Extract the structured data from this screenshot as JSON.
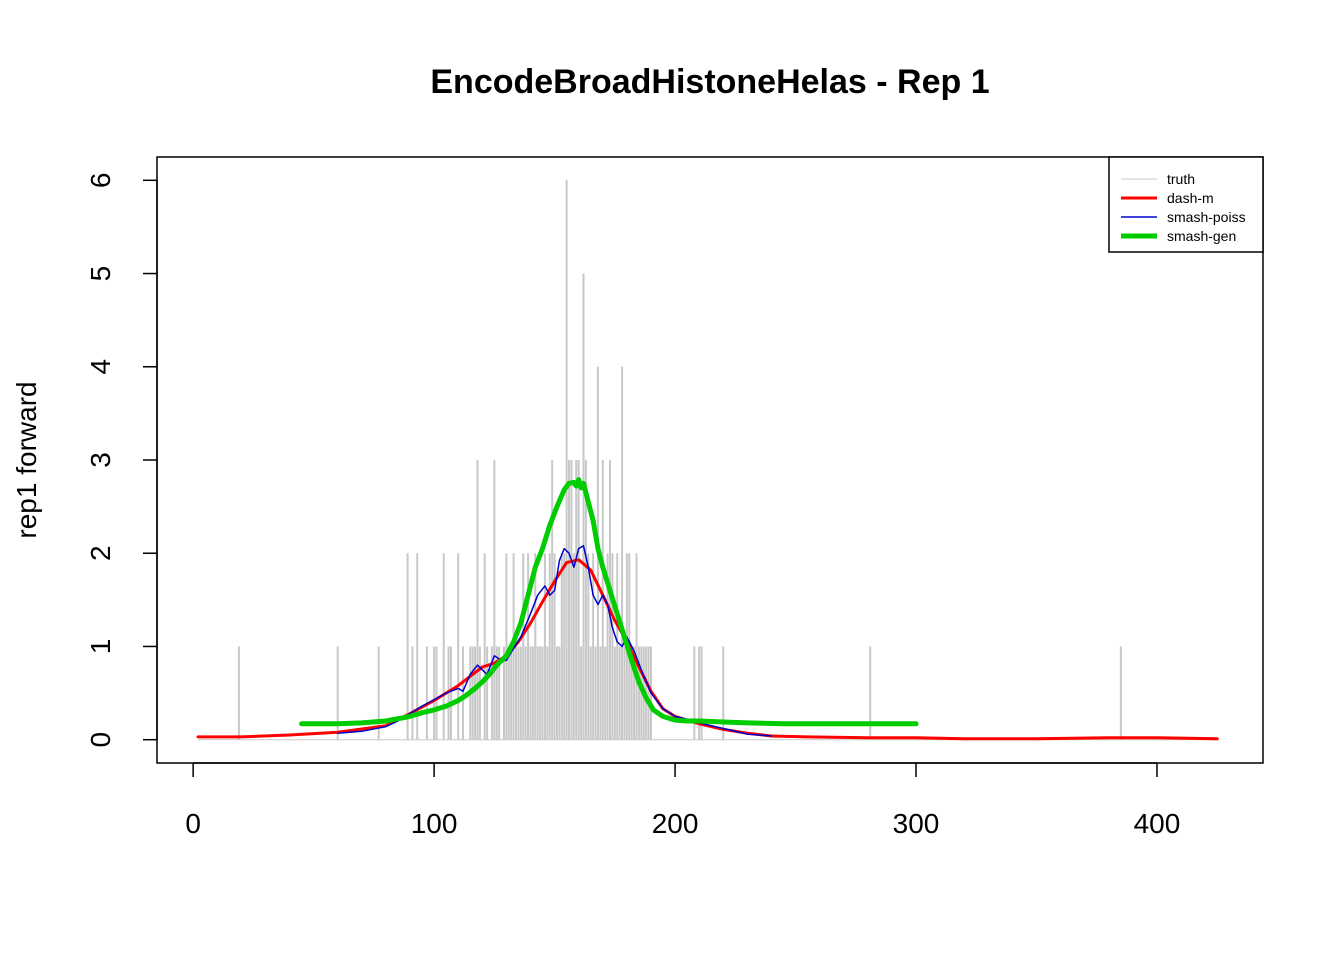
{
  "chart_data": {
    "type": "line",
    "title": "EncodeBroadHistoneHelas - Rep 1",
    "xlabel": "",
    "ylabel": "rep1 forward",
    "xlim": [
      -15,
      444
    ],
    "ylim": [
      -0.25,
      6.25
    ],
    "xticks": [
      0,
      100,
      200,
      300,
      400
    ],
    "yticks": [
      0,
      1,
      2,
      3,
      4,
      5,
      6
    ],
    "legend": {
      "position": "top-right",
      "entries": [
        {
          "name": "truth",
          "color": "#c8c8c8",
          "width": 1
        },
        {
          "name": "dash-m",
          "color": "#ff0000",
          "width": 3
        },
        {
          "name": "smash-poiss",
          "color": "#0000cd",
          "width": 1.5
        },
        {
          "name": "smash-gen",
          "color": "#00cd00",
          "width": 5
        }
      ]
    },
    "truth_bars": {
      "color": "#c8c8c8",
      "x": [
        19,
        60,
        77,
        89,
        91,
        93,
        97,
        100,
        101,
        104,
        106,
        107,
        110,
        112,
        115,
        116,
        117,
        118,
        119,
        121,
        122,
        124,
        125,
        126,
        127,
        129,
        130,
        131,
        132,
        133,
        134,
        135,
        136,
        137,
        138,
        139,
        140,
        141,
        142,
        143,
        144,
        145,
        146,
        147,
        148,
        149,
        150,
        151,
        152,
        153,
        154,
        155,
        156,
        157,
        158,
        159,
        160,
        161,
        162,
        163,
        164,
        165,
        166,
        167,
        168,
        169,
        170,
        171,
        172,
        173,
        174,
        175,
        176,
        177,
        178,
        179,
        180,
        181,
        182,
        183,
        184,
        185,
        186,
        187,
        188,
        189,
        190,
        208,
        210,
        211,
        220,
        281,
        385
      ],
      "y": [
        1,
        1,
        1,
        2,
        1,
        2,
        1,
        1,
        1,
        2,
        1,
        1,
        2,
        1,
        1,
        1,
        1,
        3,
        1,
        2,
        1,
        1,
        3,
        1,
        1,
        1,
        2,
        1,
        1,
        2,
        1,
        1,
        1,
        2,
        1,
        2,
        1,
        1,
        2,
        1,
        1,
        1,
        2,
        1,
        2,
        3,
        2,
        1,
        1,
        2,
        2,
        6,
        3,
        3,
        2,
        3,
        3,
        1,
        5,
        3,
        2,
        1,
        2,
        1,
        4,
        1,
        3,
        1,
        2,
        3,
        2,
        1,
        2,
        1,
        4,
        1,
        2,
        2,
        1,
        1,
        2,
        1,
        1,
        1,
        1,
        1,
        1,
        1,
        1,
        1,
        1,
        1,
        1
      ]
    },
    "series": [
      {
        "name": "dash-m",
        "color": "#ff0000",
        "width": 3,
        "x": [
          2,
          20,
          40,
          60,
          80,
          90,
          100,
          110,
          115,
          120,
          125,
          130,
          135,
          140,
          145,
          150,
          155,
          160,
          165,
          170,
          175,
          180,
          185,
          190,
          195,
          200,
          210,
          220,
          230,
          240,
          255,
          280,
          300,
          320,
          350,
          380,
          400,
          425
        ],
        "y": [
          0.03,
          0.03,
          0.05,
          0.08,
          0.15,
          0.28,
          0.42,
          0.58,
          0.68,
          0.78,
          0.82,
          0.9,
          1.05,
          1.25,
          1.48,
          1.7,
          1.9,
          1.93,
          1.82,
          1.55,
          1.28,
          1.05,
          0.78,
          0.52,
          0.33,
          0.25,
          0.17,
          0.11,
          0.07,
          0.04,
          0.03,
          0.02,
          0.02,
          0.01,
          0.01,
          0.02,
          0.02,
          0.01
        ]
      },
      {
        "name": "smash-poiss",
        "color": "#0000cd",
        "width": 1.5,
        "x": [
          60,
          70,
          80,
          85,
          90,
          95,
          100,
          105,
          110,
          112,
          115,
          118,
          120,
          122,
          125,
          128,
          130,
          133,
          136,
          140,
          143,
          146,
          148,
          150,
          152,
          154,
          156,
          158,
          160,
          162,
          164,
          166,
          168,
          170,
          172,
          174,
          176,
          178,
          180,
          183,
          186,
          190,
          195,
          200,
          205,
          210,
          220,
          230,
          240
        ],
        "y": [
          0.07,
          0.09,
          0.14,
          0.2,
          0.28,
          0.36,
          0.43,
          0.5,
          0.55,
          0.52,
          0.7,
          0.8,
          0.75,
          0.7,
          0.9,
          0.85,
          0.85,
          0.98,
          1.1,
          1.35,
          1.55,
          1.65,
          1.55,
          1.6,
          1.92,
          2.05,
          2.0,
          1.85,
          2.05,
          2.08,
          1.85,
          1.55,
          1.45,
          1.55,
          1.45,
          1.2,
          1.05,
          1.0,
          1.1,
          0.95,
          0.75,
          0.5,
          0.33,
          0.25,
          0.22,
          0.18,
          0.12,
          0.06,
          0.04
        ]
      },
      {
        "name": "smash-gen",
        "color": "#00cd00",
        "width": 5,
        "x": [
          45,
          60,
          70,
          80,
          90,
          95,
          100,
          105,
          110,
          113,
          117,
          120,
          123,
          126,
          130,
          133,
          136,
          139,
          142,
          145,
          148,
          151,
          154,
          156,
          158,
          159,
          160,
          161,
          162,
          163,
          164,
          166,
          168,
          170,
          173,
          176,
          179,
          182,
          185,
          188,
          191,
          195,
          200,
          205,
          210,
          220,
          230,
          245,
          260,
          280,
          300
        ],
        "y": [
          0.17,
          0.17,
          0.18,
          0.2,
          0.25,
          0.29,
          0.32,
          0.36,
          0.42,
          0.47,
          0.55,
          0.62,
          0.7,
          0.8,
          0.9,
          1.05,
          1.25,
          1.55,
          1.85,
          2.05,
          2.3,
          2.5,
          2.68,
          2.75,
          2.76,
          2.72,
          2.79,
          2.7,
          2.75,
          2.65,
          2.55,
          2.35,
          2.05,
          1.85,
          1.6,
          1.35,
          1.1,
          0.85,
          0.62,
          0.45,
          0.32,
          0.25,
          0.21,
          0.2,
          0.2,
          0.19,
          0.18,
          0.17,
          0.17,
          0.17,
          0.17
        ]
      }
    ]
  }
}
